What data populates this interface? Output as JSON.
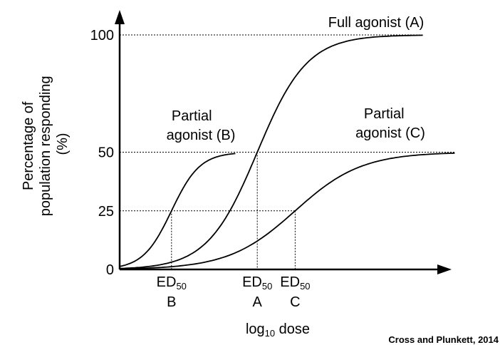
{
  "chart_data": {
    "type": "line",
    "title": "",
    "xlabel": "log10 dose",
    "xlabel_main": "log",
    "xlabel_sub": "10",
    "xlabel_rest": " dose",
    "ylabel_lines": [
      "Percentage of",
      "population responding",
      "(%)"
    ],
    "ylim": [
      0,
      105
    ],
    "yticks": [
      "0",
      "25",
      "50",
      "100"
    ],
    "ytick_values": [
      0,
      25,
      50,
      100
    ],
    "x_axis_values_printed": false,
    "grid": false,
    "legend": "none",
    "series": [
      {
        "name": "Full agonist (A)",
        "name_lines": [
          "Full agonist (A)"
        ],
        "max": 100,
        "ed50": 3.45,
        "slope": 1.6,
        "x": [
          0,
          7.6
        ]
      },
      {
        "name": "Partial agonist (B)",
        "name_lines": [
          "Partial",
          "agonist (B)"
        ],
        "max": 50,
        "ed50": 1.3,
        "slope": 2.8,
        "x": [
          0,
          2.9
        ]
      },
      {
        "name": "Partial agonist (C)",
        "name_lines": [
          "Partial",
          "agonist (C)"
        ],
        "max": 50,
        "ed50": 4.4,
        "slope": 1.2,
        "x": [
          0,
          8.4
        ]
      }
    ],
    "ed50_markers": [
      {
        "series": 1,
        "label_main": "ED",
        "label_sub": "50",
        "letter": "B",
        "x": 1.3,
        "y": 25
      },
      {
        "series": 0,
        "label_main": "ED",
        "label_sub": "50",
        "letter": "A",
        "x": 3.45,
        "y": 50
      },
      {
        "series": 2,
        "label_main": "ED",
        "label_sub": "50",
        "letter": "C",
        "x": 4.4,
        "y": 25
      }
    ],
    "reference_lines": [
      100,
      50,
      25
    ]
  },
  "credit": "Cross and Plunkett, 2014"
}
